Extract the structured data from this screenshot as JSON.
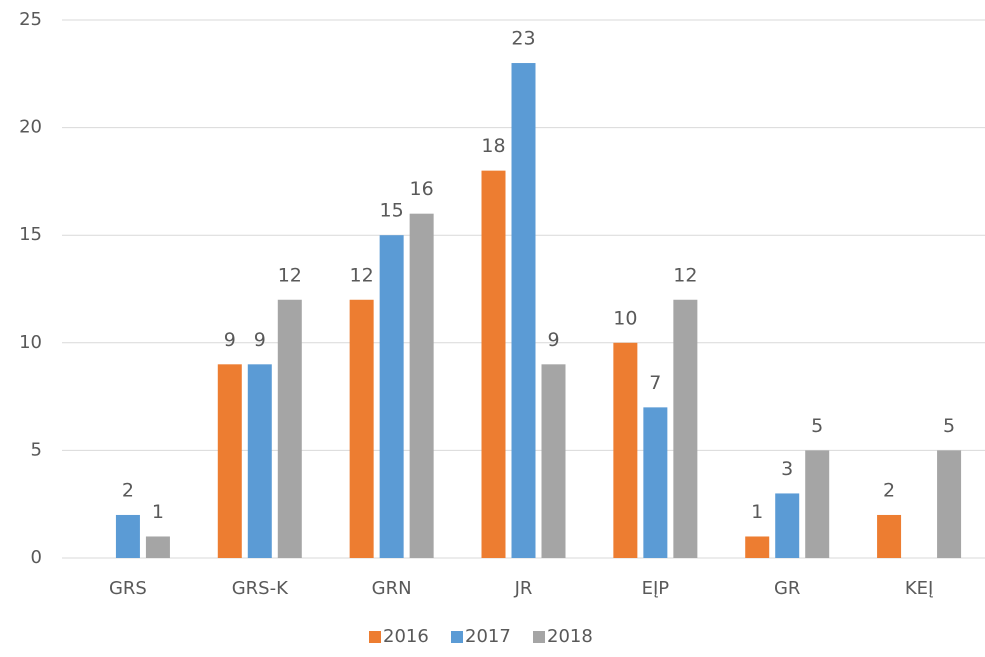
{
  "chart_data": {
    "type": "bar",
    "categories": [
      "GRS",
      "GRS-K",
      "GRN",
      "JR",
      "EĮP",
      "GR",
      "KEĮ"
    ],
    "series": [
      {
        "name": "2016",
        "color": "#ed7d31",
        "values": [
          null,
          9,
          12,
          18,
          10,
          1,
          2
        ]
      },
      {
        "name": "2017",
        "color": "#5b9bd5",
        "values": [
          2,
          9,
          15,
          23,
          7,
          3,
          null
        ]
      },
      {
        "name": "2018",
        "color": "#a5a5a5",
        "values": [
          1,
          12,
          16,
          9,
          12,
          5,
          5
        ]
      }
    ],
    "ylim": [
      0,
      25
    ],
    "yticks": [
      0,
      5,
      10,
      15,
      20,
      25
    ],
    "grid": true,
    "legend": "bottom"
  }
}
